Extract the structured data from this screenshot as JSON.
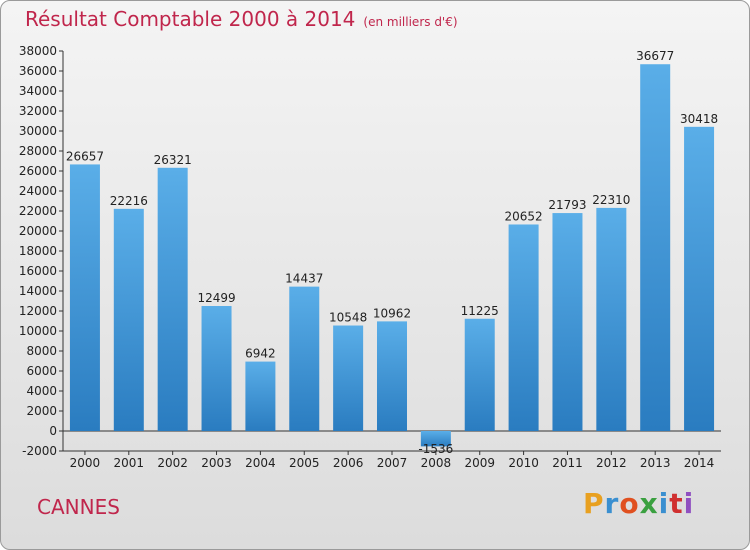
{
  "header": {
    "title": "Résultat Comptable 2000 à 2014",
    "subtitle": "(en milliers d'€)"
  },
  "footer": {
    "city": "CANNES",
    "logo": {
      "letters": [
        "P",
        "r",
        "o",
        "x",
        "i",
        "t",
        "i"
      ],
      "colors": [
        "#e8a020",
        "#3a8fd0",
        "#e05020",
        "#3aa040",
        "#3a8fd0",
        "#d03030",
        "#9050c0"
      ]
    }
  },
  "colors": {
    "bar_top": "#5aaee8",
    "bar_bottom": "#2a7cc0",
    "title": "#c0264c"
  },
  "chart_data": {
    "type": "bar",
    "categories": [
      "2000",
      "2001",
      "2002",
      "2003",
      "2004",
      "2005",
      "2006",
      "2007",
      "2008",
      "2009",
      "2010",
      "2011",
      "2012",
      "2013",
      "2014"
    ],
    "values": [
      26657,
      22216,
      26321,
      12499,
      6942,
      14437,
      10548,
      10962,
      -1536,
      11225,
      20652,
      21793,
      22310,
      36677,
      30418
    ],
    "data_labels": [
      "26657",
      "22216",
      "26321",
      "12499",
      "6942",
      "14437",
      "10548",
      "10962",
      "-1536",
      "11225",
      "20652",
      "21793",
      "22310",
      "36677",
      "30418"
    ],
    "yticks": [
      -2000,
      0,
      2000,
      4000,
      6000,
      8000,
      10000,
      12000,
      14000,
      16000,
      18000,
      20000,
      22000,
      24000,
      26000,
      28000,
      30000,
      32000,
      34000,
      36000,
      38000
    ],
    "ylim": [
      -2000,
      38000
    ],
    "grid": false
  }
}
